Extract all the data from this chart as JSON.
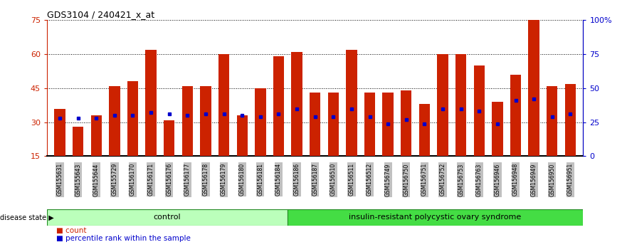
{
  "title": "GDS3104 / 240421_x_at",
  "samples": [
    "GSM155631",
    "GSM155643",
    "GSM155644",
    "GSM155729",
    "GSM156170",
    "GSM156171",
    "GSM156176",
    "GSM156177",
    "GSM156178",
    "GSM156179",
    "GSM156180",
    "GSM156181",
    "GSM156184",
    "GSM156186",
    "GSM156187",
    "GSM156510",
    "GSM156511",
    "GSM156512",
    "GSM156749",
    "GSM156750",
    "GSM156751",
    "GSM156752",
    "GSM156753",
    "GSM156763",
    "GSM156946",
    "GSM156948",
    "GSM156949",
    "GSM156950",
    "GSM156951"
  ],
  "counts": [
    36,
    28,
    33,
    46,
    48,
    62,
    31,
    46,
    46,
    60,
    33,
    45,
    59,
    61,
    43,
    43,
    62,
    43,
    43,
    44,
    38,
    60,
    60,
    55,
    39,
    51,
    75,
    46,
    47
  ],
  "percentile_ranks": [
    28,
    28,
    28,
    30,
    30,
    32,
    31,
    30,
    31,
    31,
    30,
    29,
    31,
    35,
    29,
    29,
    35,
    29,
    24,
    27,
    24,
    35,
    35,
    33,
    24,
    41,
    42,
    29,
    31
  ],
  "group_labels": [
    "control",
    "insulin-resistant polycystic ovary syndrome"
  ],
  "group_sizes": [
    13,
    16
  ],
  "bar_color": "#CC2200",
  "dot_color": "#0000CC",
  "ylim_left": [
    15,
    75
  ],
  "ylim_right": [
    0,
    100
  ],
  "yticks_left": [
    15,
    30,
    45,
    60,
    75
  ],
  "yticks_right": [
    0,
    25,
    50,
    75,
    100
  ],
  "ytick_labels_right": [
    "0",
    "25",
    "50",
    "75",
    "100%"
  ],
  "disease_state_label": "disease state",
  "legend_count_label": "count",
  "legend_percentile_label": "percentile rank within the sample",
  "ctrl_color": "#BBFFBB",
  "pcos_color": "#44DD44",
  "background_color": "#ffffff",
  "tick_bg_color": "#C0C0C0"
}
